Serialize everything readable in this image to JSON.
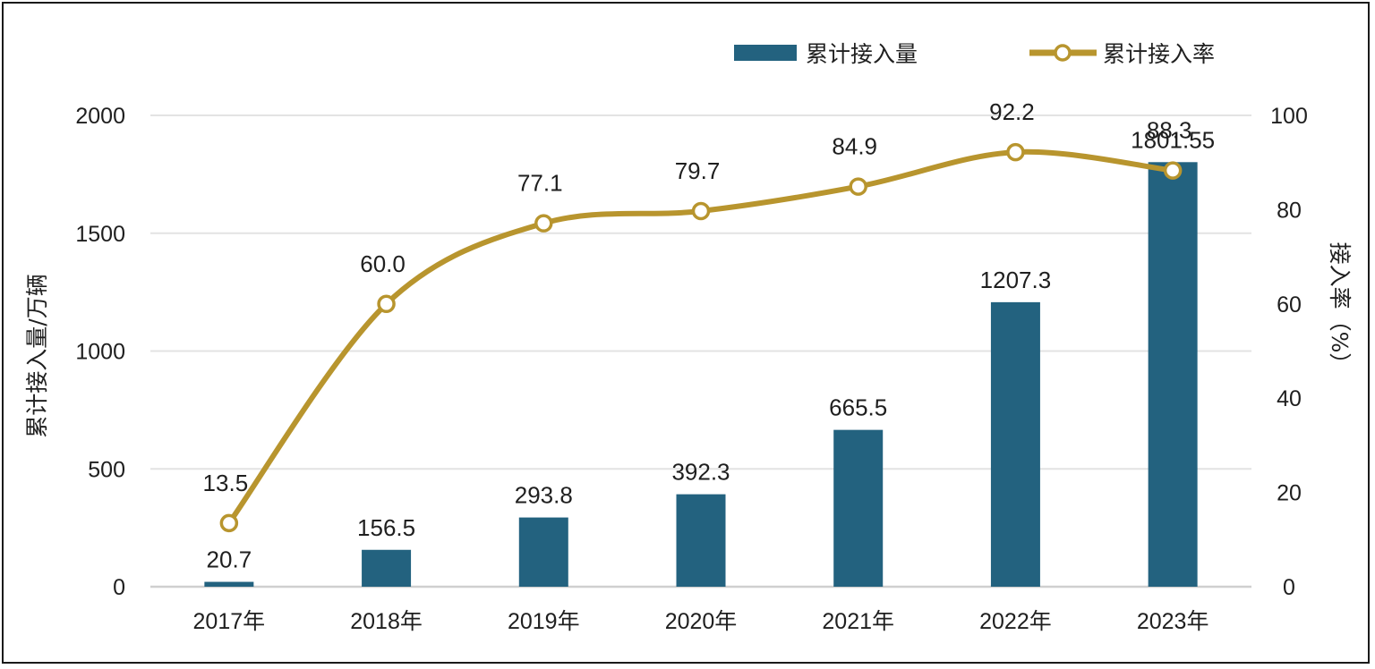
{
  "chart_data": {
    "type": "bar+line",
    "categories": [
      "2017年",
      "2018年",
      "2019年",
      "2020年",
      "2021年",
      "2022年",
      "2023年"
    ],
    "series": [
      {
        "name": "累计接入量",
        "type": "bar",
        "axis": "left",
        "color": "#23627f",
        "values": [
          20.7,
          156.5,
          293.8,
          392.3,
          665.5,
          1207.3,
          1801.55
        ],
        "labels": [
          "20.7",
          "156.5",
          "293.8",
          "392.3",
          "665.5",
          "1207.3",
          "1801.55"
        ]
      },
      {
        "name": "累计接入率",
        "type": "line",
        "axis": "right",
        "color": "#b8952e",
        "values": [
          13.5,
          60.0,
          77.1,
          79.7,
          84.9,
          92.2,
          88.3
        ],
        "labels": [
          "13.5",
          "60.0",
          "77.1",
          "79.7",
          "84.9",
          "92.2",
          "88.3"
        ]
      }
    ],
    "ylabel_left": "累计接入量/万辆",
    "ylabel_right": "接入率（%）",
    "ylim_left": [
      0,
      2000
    ],
    "yticks_left": [
      "0",
      "500",
      "1000",
      "1500",
      "2000"
    ],
    "ylim_right": [
      0,
      100
    ],
    "yticks_right": [
      "0",
      "20",
      "40",
      "60",
      "80",
      "100"
    ],
    "grid": true,
    "legend_position": "top-right"
  }
}
